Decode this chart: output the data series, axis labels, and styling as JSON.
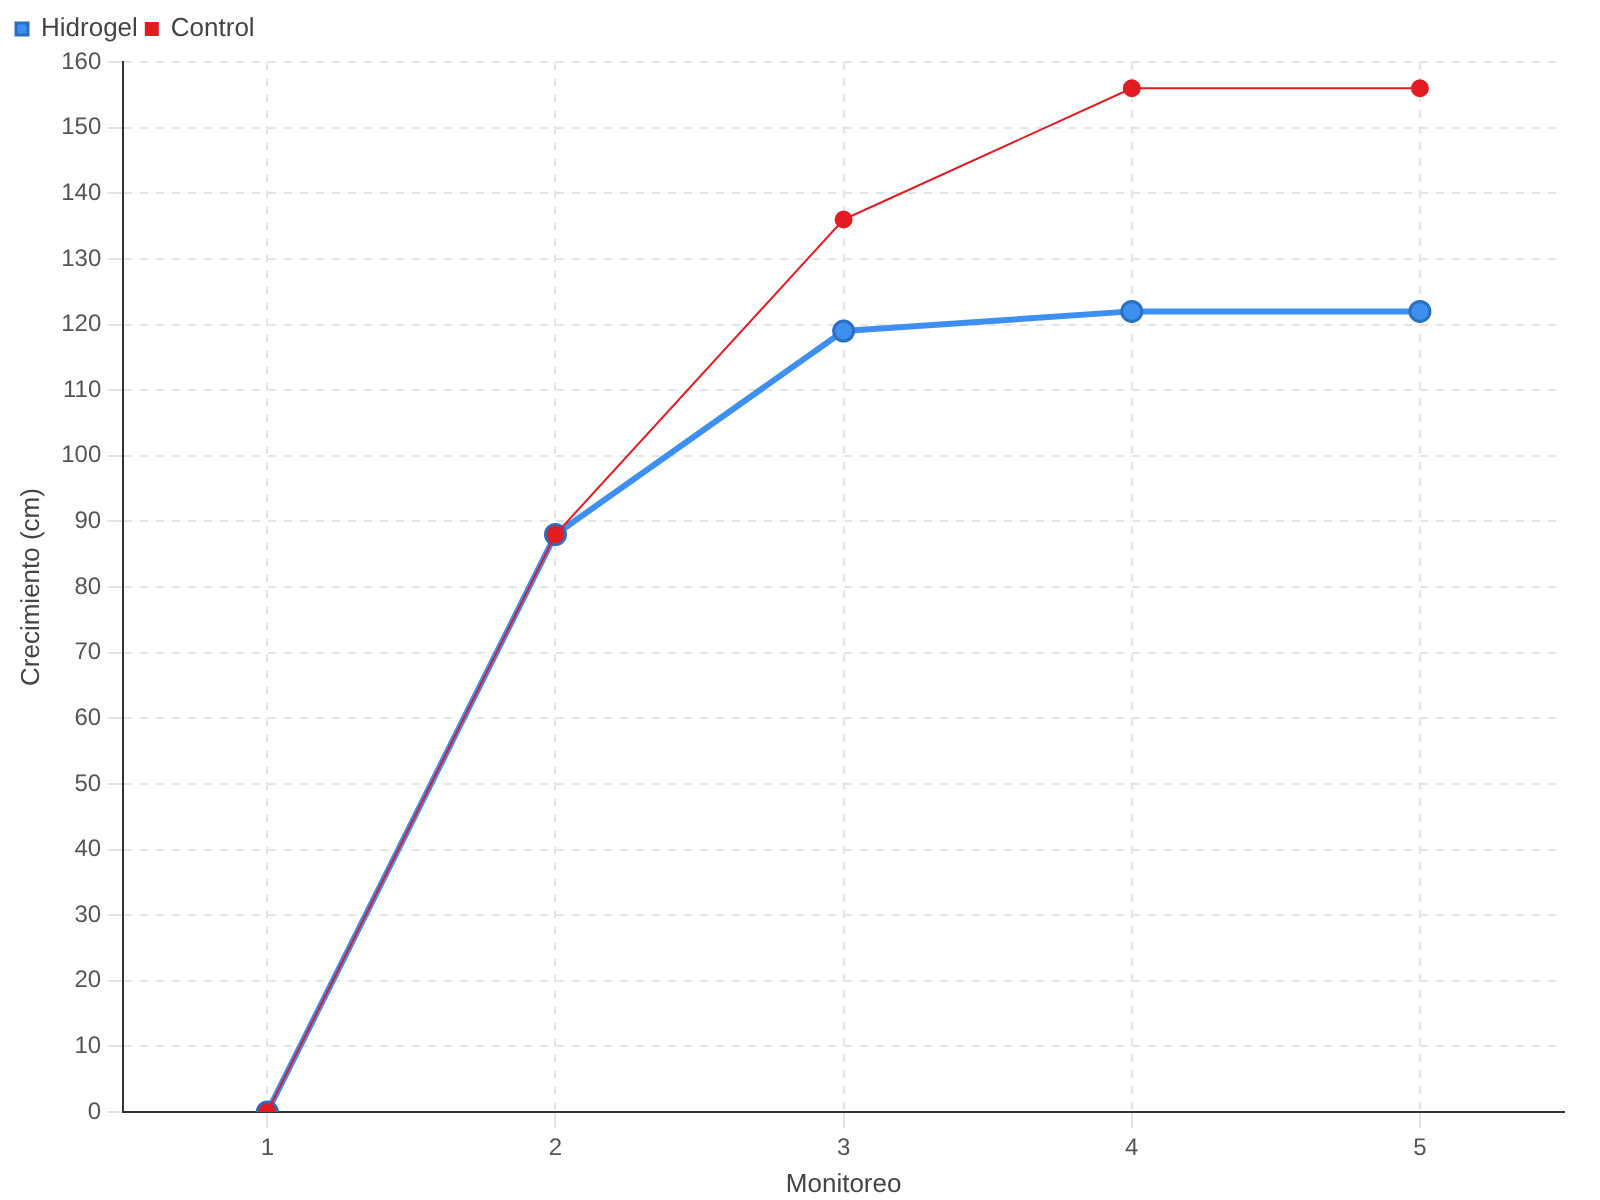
{
  "chart_data": {
    "type": "line",
    "xlabel": "Monitoreo",
    "ylabel": "Crecimiento (cm)",
    "categories": [
      "1",
      "2",
      "3",
      "4",
      "5"
    ],
    "series": [
      {
        "name": "Hidrogel",
        "color": "#3d8ff0",
        "values": [
          0,
          88,
          119,
          122,
          122
        ]
      },
      {
        "name": "Control",
        "color": "#e31b23",
        "values": [
          0,
          88,
          136,
          156,
          156
        ]
      }
    ],
    "ylim": [
      0,
      160
    ],
    "yticks": [
      0,
      10,
      20,
      30,
      40,
      50,
      60,
      70,
      80,
      90,
      100,
      110,
      120,
      130,
      140,
      150,
      160
    ],
    "grid": true,
    "legend": "top left",
    "marker": "circle",
    "line_style": "solid"
  }
}
